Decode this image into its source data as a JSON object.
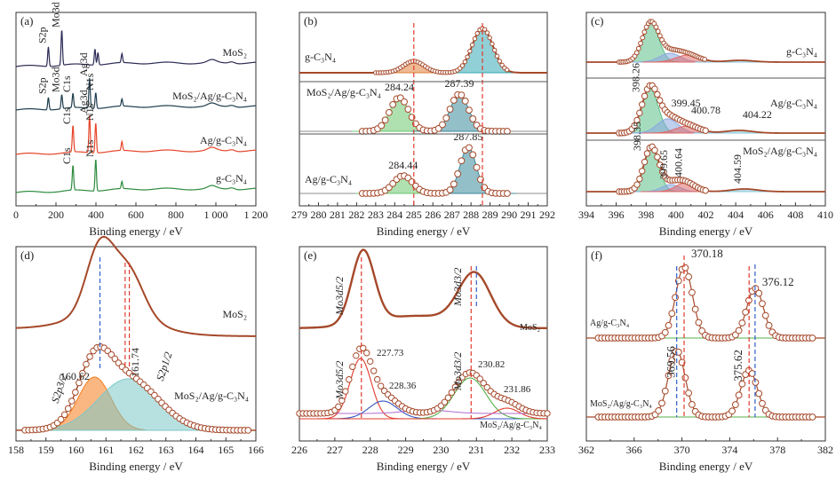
{
  "chart_data": [
    {
      "panel": "(a)",
      "type": "line",
      "xlabel": "Binding energy / eV",
      "xlim": [
        0,
        1200
      ],
      "xticks": [
        "0",
        "200",
        "400",
        "600",
        "800",
        "1 000",
        "1 200"
      ],
      "series": [
        {
          "name": "MoS₂",
          "color": "#2b2a55",
          "peaks": [
            {
              "label": "S2p",
              "x": 162
            },
            {
              "label": "Mo3d",
              "x": 229
            }
          ]
        },
        {
          "name": "MoS₂/Ag/g-C₃N₄",
          "color": "#1f3d4d",
          "peaks": [
            {
              "label": "S2p",
              "x": 162
            },
            {
              "label": "Mo3d",
              "x": 229
            },
            {
              "label": "C1s",
              "x": 285
            },
            {
              "label": "Ag3d",
              "x": 368
            },
            {
              "label": "N1s",
              "x": 399
            }
          ]
        },
        {
          "name": "Ag/g-C₃N₄",
          "color": "#e5452a",
          "peaks": [
            {
              "label": "C1s",
              "x": 285
            },
            {
              "label": "Ag3d",
              "x": 368
            },
            {
              "label": "N1s",
              "x": 399
            }
          ]
        },
        {
          "name": "g-C₃N₄",
          "color": "#2e8b3e",
          "peaks": [
            {
              "label": "C1s",
              "x": 285
            },
            {
              "label": "N1s",
              "x": 399
            }
          ]
        }
      ]
    },
    {
      "panel": "(b)",
      "type": "line",
      "xlabel": "Binding energy / eV",
      "xlim": [
        279,
        292
      ],
      "xticks": [
        "279",
        "280",
        "281",
        "282",
        "283",
        "284",
        "285",
        "286",
        "287",
        "288",
        "289",
        "290",
        "291",
        "292"
      ],
      "reference_lines": [
        285.0,
        288.6
      ],
      "series": [
        {
          "name": "g-C₃N₄",
          "peaks": [
            {
              "x": 285.0
            },
            {
              "x": 288.6
            }
          ]
        },
        {
          "name": "MoS₂/Ag/g-C₃N₄",
          "peaks": [
            {
              "x": 284.24,
              "label": "284.24"
            },
            {
              "x": 287.39,
              "label": "287.39"
            }
          ]
        },
        {
          "name": "Ag/g-C₃N₄",
          "peaks": [
            {
              "x": 284.44,
              "label": "284.44"
            },
            {
              "x": 287.85,
              "label": "287.85"
            }
          ]
        }
      ]
    },
    {
      "panel": "(c)",
      "type": "line",
      "xlabel": "Binding energy / eV",
      "xlim": [
        394,
        410
      ],
      "xticks": [
        "394",
        "396",
        "398",
        "400",
        "402",
        "404",
        "406",
        "408",
        "410"
      ],
      "series": [
        {
          "name": "g-C₃N₄",
          "peaks": [
            {
              "x": 398.3
            },
            {
              "x": 399.6
            },
            {
              "x": 400.8
            },
            {
              "x": 404.3
            }
          ]
        },
        {
          "name": "Ag/g-C₃N₄",
          "peaks": [
            {
              "x": 398.26,
              "label": "398.26"
            },
            {
              "x": 399.45,
              "label": "399.45"
            },
            {
              "x": 400.78,
              "label": "400.78"
            },
            {
              "x": 404.22,
              "label": "404.22"
            }
          ]
        },
        {
          "name": "MoS₂/Ag/g-C₃N₄",
          "peaks": [
            {
              "x": 398.35,
              "label": "398.35"
            },
            {
              "x": 399.65,
              "label": "399.65"
            },
            {
              "x": 400.64,
              "label": "400.64"
            },
            {
              "x": 404.59,
              "label": "404.59"
            }
          ]
        }
      ]
    },
    {
      "panel": "(d)",
      "type": "line",
      "xlabel": "Binding energy / eV",
      "xlim": [
        158,
        166
      ],
      "xticks": [
        "158",
        "159",
        "160",
        "161",
        "162",
        "163",
        "164",
        "165",
        "166"
      ],
      "series": [
        {
          "name": "MoS₂",
          "peaks": [
            {
              "x": 160.8
            },
            {
              "x": 161.75
            }
          ]
        },
        {
          "name": "MoS₂/Ag/g-C₃N₄",
          "peaks": [
            {
              "x": 160.62,
              "label": "160.62",
              "assignment": "S2p3/2"
            },
            {
              "x": 161.74,
              "label": "161.74",
              "assignment": "S2p1/2"
            }
          ]
        }
      ]
    },
    {
      "panel": "(e)",
      "type": "line",
      "xlabel": "Binding energy / eV",
      "xlim": [
        226,
        233
      ],
      "xticks": [
        "226",
        "227",
        "228",
        "229",
        "230",
        "231",
        "232",
        "233"
      ],
      "series": [
        {
          "name": "MoS₂",
          "peaks": [
            {
              "x": 227.8,
              "assignment": "Mo3d5/2"
            },
            {
              "x": 230.95,
              "assignment": "Mo3d3/2"
            }
          ]
        },
        {
          "name": "MoS₂/Ag/g-C₃N₄",
          "peaks": [
            {
              "x": 227.73,
              "label": "227.73",
              "assignment": "Mo3d5/2"
            },
            {
              "x": 228.36,
              "label": "228.36"
            },
            {
              "x": 230.82,
              "label": "230.82",
              "assignment": "Mo3d3/2"
            },
            {
              "x": 231.86,
              "label": "231.86"
            }
          ]
        }
      ]
    },
    {
      "panel": "(f)",
      "type": "line",
      "xlabel": "Binding energy / eV",
      "xlim": [
        362,
        382
      ],
      "xticks": [
        "362",
        "366",
        "370",
        "374",
        "378",
        "382"
      ],
      "series": [
        {
          "name": "Ag/g-C₃N₄",
          "peaks": [
            {
              "x": 370.18,
              "label": "370.18"
            },
            {
              "x": 376.12,
              "label": "376.12"
            }
          ]
        },
        {
          "name": "MoS₂/Ag/g-C₃N₄",
          "peaks": [
            {
              "x": 369.56,
              "label": "369.56"
            },
            {
              "x": 375.62,
              "label": "375.62"
            }
          ]
        }
      ]
    }
  ]
}
